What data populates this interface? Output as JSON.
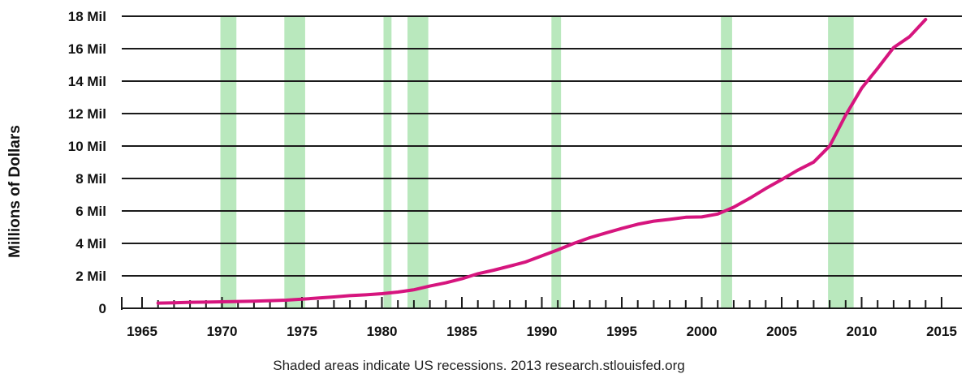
{
  "chart_data": {
    "type": "line",
    "title": "",
    "xlabel": "",
    "ylabel": "Millions of Dollars",
    "footnote": "Shaded areas indicate US recessions. 2013 research.stlouisfed.org",
    "xlim": [
      1964,
      2016
    ],
    "ylim": [
      0,
      18
    ],
    "x_ticks": [
      1965,
      1970,
      1975,
      1980,
      1985,
      1990,
      1995,
      2000,
      2005,
      2010,
      2015
    ],
    "y_ticks": [
      {
        "value": 0,
        "label": "0"
      },
      {
        "value": 2,
        "label": "2 Mil"
      },
      {
        "value": 4,
        "label": "4 Mil"
      },
      {
        "value": 6,
        "label": "6 Mil"
      },
      {
        "value": 8,
        "label": "8 Mil"
      },
      {
        "value": 10,
        "label": "10 Mil"
      },
      {
        "value": 12,
        "label": "12 Mil"
      },
      {
        "value": 14,
        "label": "14 Mil"
      },
      {
        "value": 16,
        "label": "16 Mil"
      },
      {
        "value": 18,
        "label": "18 Mil"
      }
    ],
    "grid": "horizontal",
    "recessions": [
      [
        1969.9,
        1970.9
      ],
      [
        1973.9,
        1975.2
      ],
      [
        1980.1,
        1980.6
      ],
      [
        1981.6,
        1982.9
      ],
      [
        1990.6,
        1991.2
      ],
      [
        2001.2,
        2001.9
      ],
      [
        2007.9,
        2009.5
      ]
    ],
    "recession_color": "#b9e8bd",
    "series": [
      {
        "color": "#d6157e",
        "points": [
          [
            1966,
            0.32
          ],
          [
            1967,
            0.34
          ],
          [
            1968,
            0.37
          ],
          [
            1969,
            0.38
          ],
          [
            1970,
            0.4
          ],
          [
            1971,
            0.42
          ],
          [
            1972,
            0.44
          ],
          [
            1973,
            0.47
          ],
          [
            1974,
            0.5
          ],
          [
            1975,
            0.56
          ],
          [
            1976,
            0.63
          ],
          [
            1977,
            0.7
          ],
          [
            1978,
            0.78
          ],
          [
            1979,
            0.83
          ],
          [
            1980,
            0.9
          ],
          [
            1981,
            1.0
          ],
          [
            1982,
            1.14
          ],
          [
            1983,
            1.37
          ],
          [
            1984,
            1.57
          ],
          [
            1985,
            1.82
          ],
          [
            1986,
            2.13
          ],
          [
            1987,
            2.35
          ],
          [
            1988,
            2.6
          ],
          [
            1989,
            2.86
          ],
          [
            1990,
            3.23
          ],
          [
            1991,
            3.6
          ],
          [
            1992,
            4.0
          ],
          [
            1993,
            4.35
          ],
          [
            1994,
            4.64
          ],
          [
            1995,
            4.92
          ],
          [
            1996,
            5.18
          ],
          [
            1997,
            5.37
          ],
          [
            1998,
            5.48
          ],
          [
            1999,
            5.61
          ],
          [
            2000,
            5.63
          ],
          [
            2001,
            5.81
          ],
          [
            2002,
            6.23
          ],
          [
            2003,
            6.78
          ],
          [
            2004,
            7.38
          ],
          [
            2005,
            7.93
          ],
          [
            2006,
            8.51
          ],
          [
            2007,
            9.01
          ],
          [
            2008,
            10.0
          ],
          [
            2009,
            11.9
          ],
          [
            2010,
            13.56
          ],
          [
            2011,
            14.79
          ],
          [
            2012,
            16.07
          ],
          [
            2013,
            16.74
          ],
          [
            2014,
            17.8
          ]
        ]
      }
    ]
  }
}
